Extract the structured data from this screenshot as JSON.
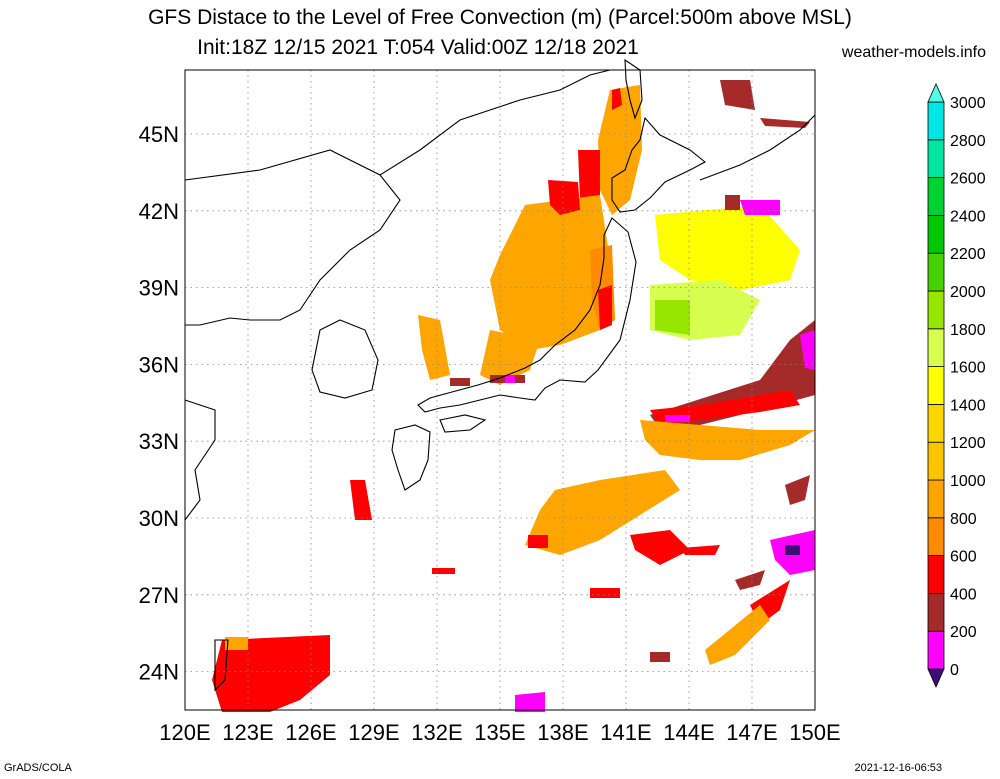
{
  "header": {
    "title": "GFS Distace to the Level of Free Convection (m) (Parcel:500m above MSL)",
    "subtitle": "Init:18Z 12/15 2021 T:054 Valid:00Z 12/18 2021",
    "site": "weather-models.info"
  },
  "footer": {
    "software": "GrADS/COLA",
    "timestamp": "2021-12-16-06:53"
  },
  "map": {
    "lon_range": [
      120,
      150
    ],
    "lat_range": [
      22.5,
      47.5
    ],
    "lon_ticks": [
      "120E",
      "123E",
      "126E",
      "129E",
      "132E",
      "135E",
      "138E",
      "141E",
      "144E",
      "147E",
      "150E"
    ],
    "lat_ticks": [
      "24N",
      "27N",
      "30N",
      "33N",
      "36N",
      "39N",
      "42N",
      "45N"
    ],
    "grid": "dotted"
  },
  "colorbar": {
    "labels": [
      "0",
      "200",
      "400",
      "600",
      "800",
      "1000",
      "1200",
      "1400",
      "1600",
      "1800",
      "2000",
      "2200",
      "2400",
      "2600",
      "2800",
      "3000"
    ],
    "colors": [
      "#3c0f78",
      "#ff00ff",
      "#a52a2a",
      "#ff0000",
      "#ff8c00",
      "#ffa500",
      "#ffc400",
      "#ffd700",
      "#ffff00",
      "#d7ff50",
      "#96e600",
      "#46d200",
      "#00c800",
      "#00d232",
      "#00e6a0",
      "#00e6e6",
      "#50ffe6"
    ]
  }
}
